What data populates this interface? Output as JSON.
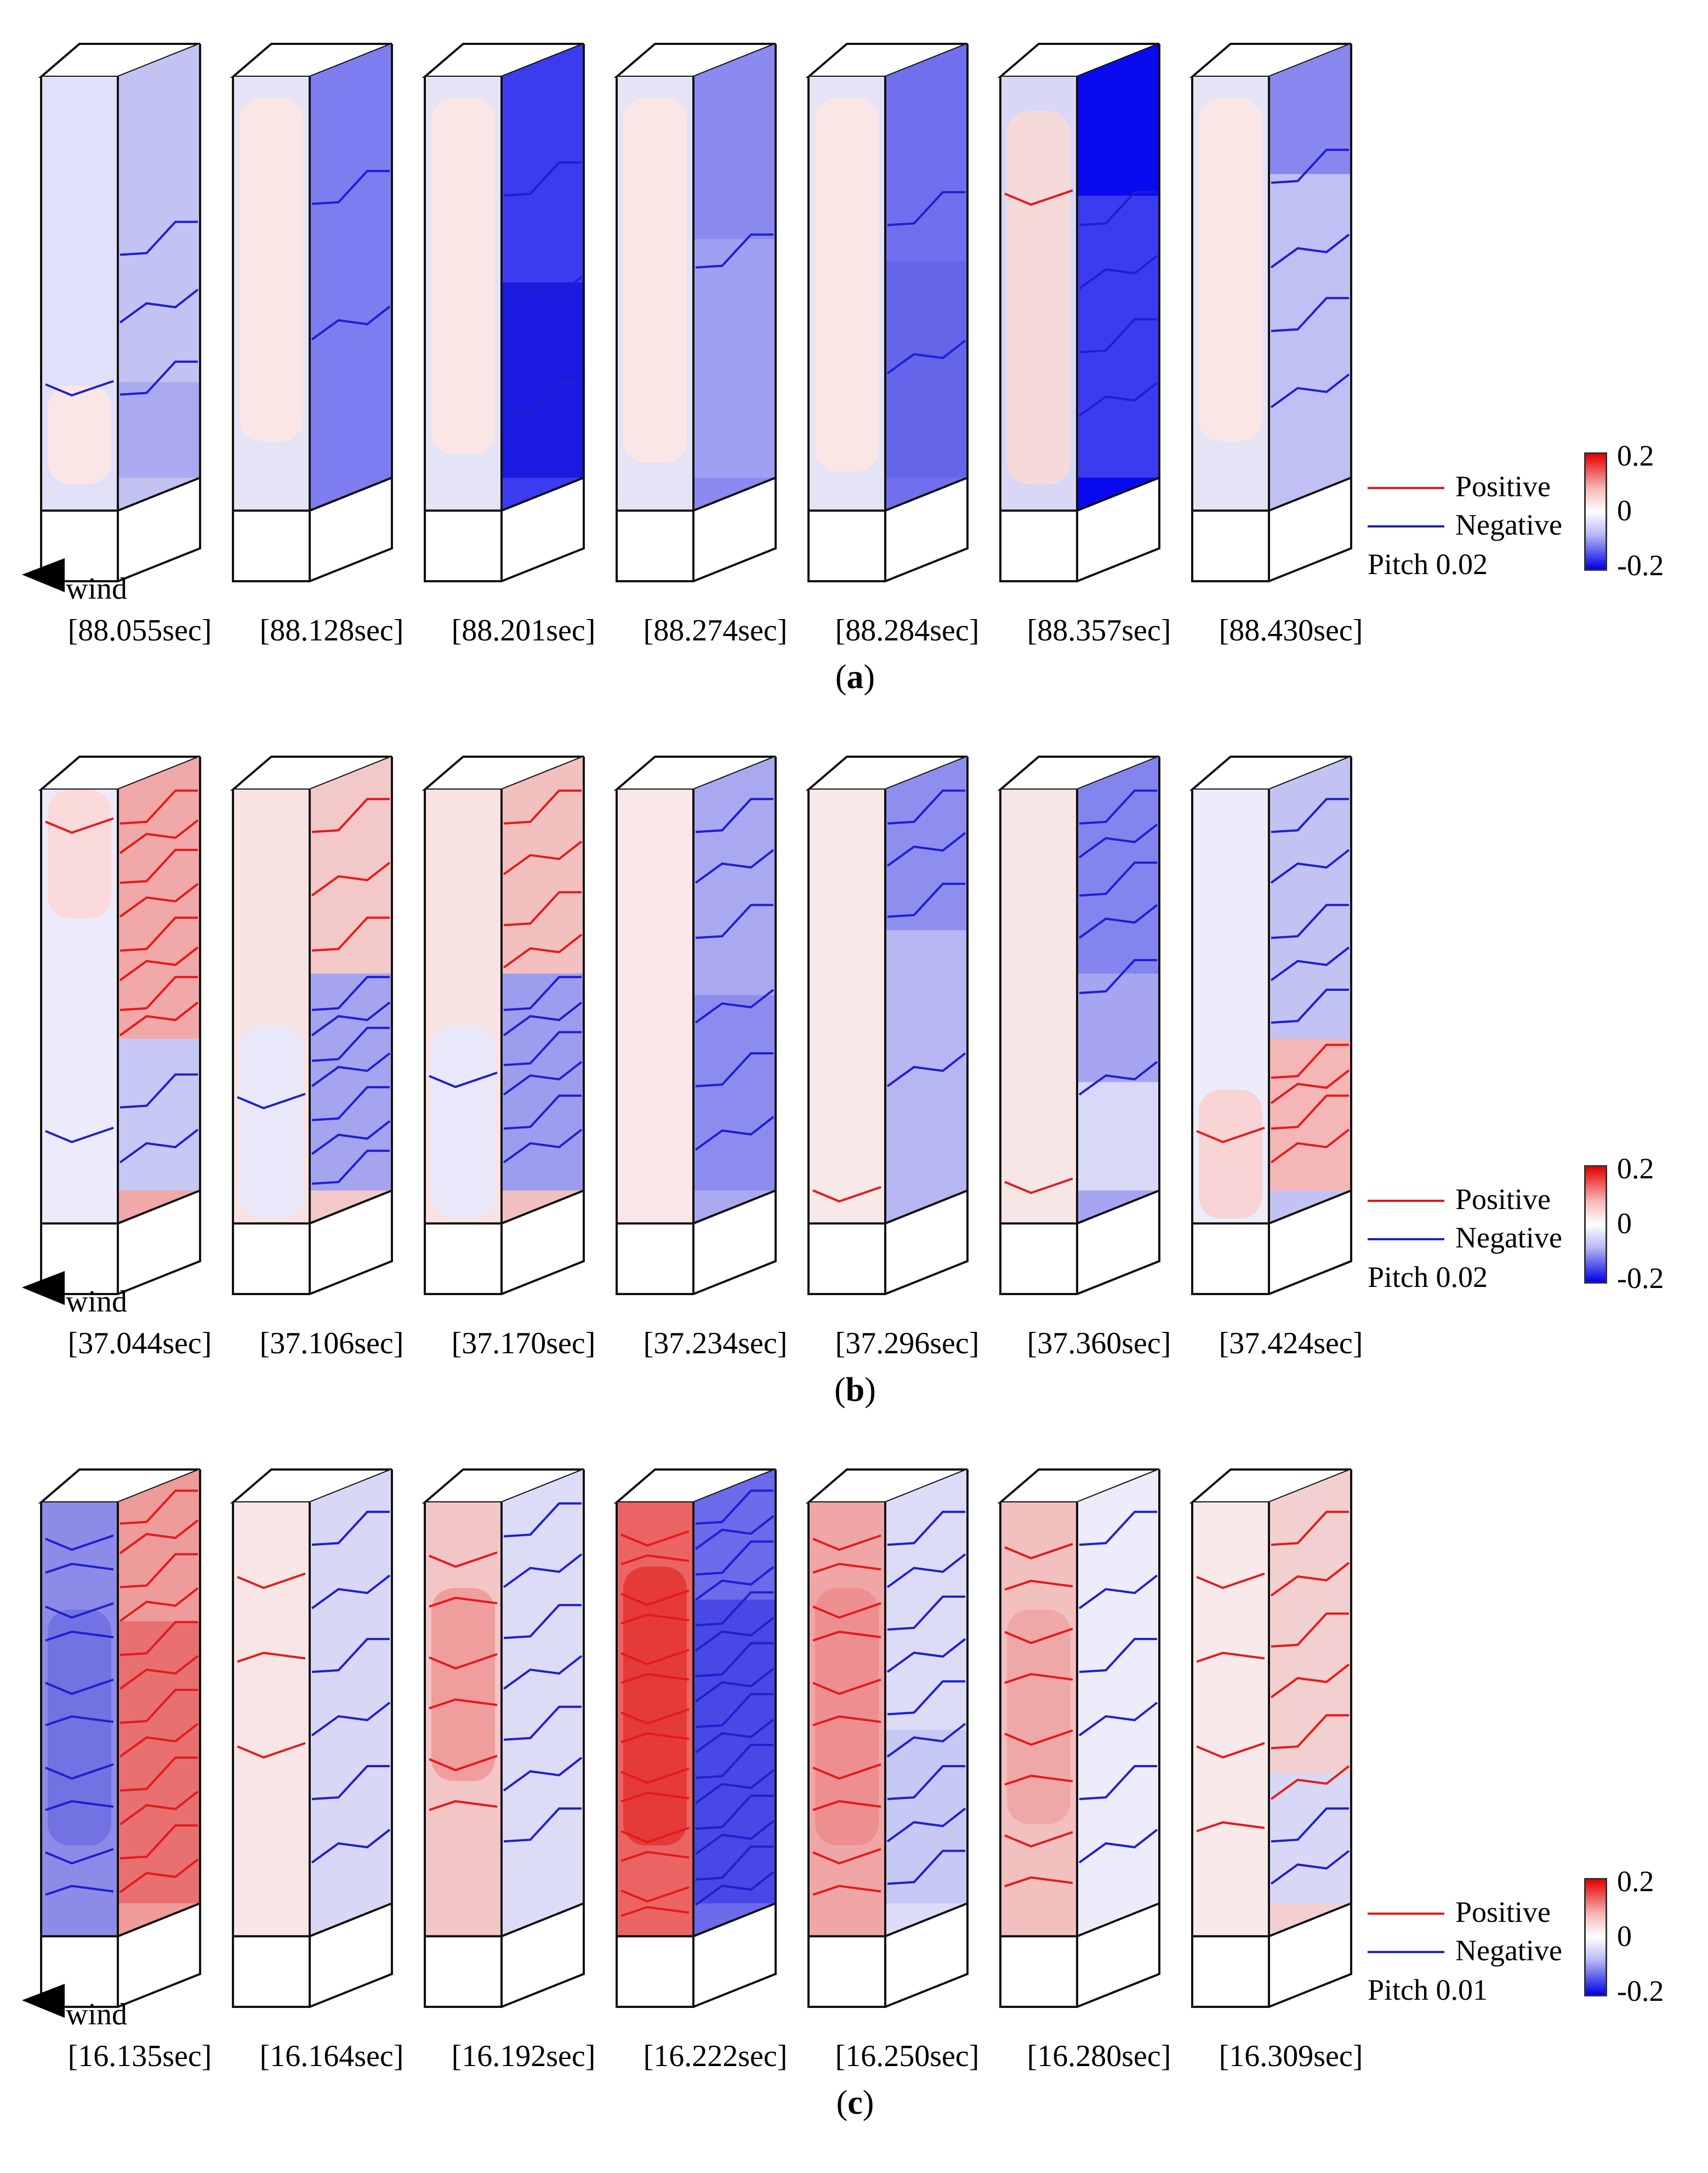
{
  "panels": [
    {
      "id": "a",
      "caption": "a",
      "wind_label": "wind",
      "times": [
        "[88.055sec]",
        "[88.128sec]",
        "[88.201sec]",
        "[88.274sec]",
        "[88.284sec]",
        "[88.357sec]",
        "[88.430sec]"
      ],
      "legend": {
        "positive": "Positive",
        "negative": "Negative",
        "pitch": "Pitch  0.02"
      },
      "colorbar": {
        "max": "0.2",
        "mid": "0",
        "min": "-0.2"
      },
      "buildings": [
        {
          "front": "#e0e0f8",
          "side": "#c3c3f3",
          "bands": [
            {
              "from": 0.78,
              "to": 1.0,
              "color": "#aaaaf2"
            }
          ],
          "frontBands": [
            {
              "from": 0.72,
              "to": 0.95,
              "color": "#fbe6e6"
            }
          ],
          "lines": [
            {
              "face": "side",
              "color": "blue",
              "ys": [
                0.42,
                0.58,
                0.75
              ]
            },
            {
              "face": "front",
              "color": "blue",
              "ys": [
                0.7
              ]
            }
          ]
        },
        {
          "front": "#e4e4f6",
          "side": "#7d7df0",
          "bands": [],
          "frontBands": [
            {
              "from": 0.05,
              "to": 0.85,
              "color": "#fbe6e6"
            }
          ],
          "lines": [
            {
              "face": "side",
              "color": "blue",
              "ys": [
                0.3,
                0.62
              ]
            }
          ]
        },
        {
          "front": "#e4e4f6",
          "side": "#3b3bf0",
          "bands": [
            {
              "from": 0.55,
              "to": 1.0,
              "color": "#1a1ae0"
            }
          ],
          "frontBands": [
            {
              "from": 0.05,
              "to": 0.88,
              "color": "#fbe6e6"
            }
          ],
          "lines": [
            {
              "face": "side",
              "color": "blue",
              "ys": [
                0.28,
                0.55,
                0.8
              ]
            }
          ]
        },
        {
          "front": "#e4e4f6",
          "side": "#8a8af0",
          "bands": [
            {
              "from": 0.45,
              "to": 1.0,
              "color": "#a0a0f3"
            }
          ],
          "frontBands": [
            {
              "from": 0.05,
              "to": 0.9,
              "color": "#fbe6e6"
            }
          ],
          "lines": [
            {
              "face": "side",
              "color": "blue",
              "ys": [
                0.45
              ]
            }
          ]
        },
        {
          "front": "#e4e4f6",
          "side": "#7070ee",
          "bands": [
            {
              "from": 0.5,
              "to": 1.0,
              "color": "#6565ea"
            }
          ],
          "frontBands": [
            {
              "from": 0.05,
              "to": 0.92,
              "color": "#fbe6e6"
            }
          ],
          "lines": [
            {
              "face": "side",
              "color": "blue",
              "ys": [
                0.35,
                0.7
              ]
            }
          ]
        },
        {
          "front": "#d8d8f6",
          "side": "#0a0af0",
          "bands": [
            {
              "from": 0.35,
              "to": 1.0,
              "color": "#3b3bf0"
            }
          ],
          "frontBands": [
            {
              "from": 0.08,
              "to": 0.95,
              "color": "#f6dada"
            }
          ],
          "lines": [
            {
              "face": "side",
              "color": "blue",
              "ys": [
                0.35,
                0.5,
                0.65,
                0.8
              ]
            },
            {
              "face": "front",
              "color": "red",
              "ys": [
                0.25
              ]
            }
          ]
        },
        {
          "front": "#e4e4f6",
          "side": "#c0c0f4",
          "bands": [
            {
              "from": 0.0,
              "to": 0.3,
              "color": "#8787ef"
            }
          ],
          "frontBands": [
            {
              "from": 0.05,
              "to": 0.85,
              "color": "#fbe6e6"
            }
          ],
          "lines": [
            {
              "face": "side",
              "color": "blue",
              "ys": [
                0.25,
                0.45,
                0.6,
                0.78
              ]
            }
          ]
        }
      ]
    },
    {
      "id": "b",
      "caption": "b",
      "wind_label": "wind",
      "times": [
        "[37.044sec]",
        "[37.106sec]",
        "[37.170sec]",
        "[37.234sec]",
        "[37.296sec]",
        "[37.360sec]",
        "[37.424sec]"
      ],
      "legend": {
        "positive": "Positive",
        "negative": "Negative",
        "pitch": "Pitch  0.02"
      },
      "colorbar": {
        "max": "0.2",
        "mid": "0",
        "min": "-0.2"
      },
      "buildings": [
        {
          "front": "#ecebfb",
          "side": "#f1a8a8",
          "bands": [
            {
              "from": 0.65,
              "to": 1.0,
              "color": "#c8c8f4"
            }
          ],
          "frontBands": [
            {
              "from": 0.0,
              "to": 0.3,
              "color": "#fadada"
            }
          ],
          "lines": [
            {
              "face": "side",
              "color": "red",
              "ys": [
                0.08,
                0.15,
                0.22,
                0.3,
                0.38,
                0.45,
                0.52,
                0.58
              ]
            },
            {
              "face": "side",
              "color": "blue",
              "ys": [
                0.75,
                0.88
              ]
            },
            {
              "face": "front",
              "color": "red",
              "ys": [
                0.05
              ]
            },
            {
              "face": "front",
              "color": "blue",
              "ys": [
                0.78
              ]
            }
          ]
        },
        {
          "front": "#f8e2e2",
          "side": "#f3c8c8",
          "bands": [
            {
              "from": 0.5,
              "to": 1.0,
              "color": "#a4a4ef"
            }
          ],
          "frontBands": [
            {
              "from": 0.55,
              "to": 1.0,
              "color": "#e8e8fa"
            }
          ],
          "lines": [
            {
              "face": "side",
              "color": "red",
              "ys": [
                0.1,
                0.25,
                0.38
              ]
            },
            {
              "face": "side",
              "color": "blue",
              "ys": [
                0.52,
                0.58,
                0.64,
                0.7,
                0.78,
                0.86,
                0.93
              ]
            },
            {
              "face": "front",
              "color": "blue",
              "ys": [
                0.7
              ]
            }
          ]
        },
        {
          "front": "#f8e2e2",
          "side": "#f3c0c0",
          "bands": [
            {
              "from": 0.5,
              "to": 1.0,
              "color": "#9d9def"
            }
          ],
          "frontBands": [
            {
              "from": 0.55,
              "to": 1.0,
              "color": "#e8e8fa"
            }
          ],
          "lines": [
            {
              "face": "side",
              "color": "red",
              "ys": [
                0.08,
                0.2,
                0.32,
                0.42
              ]
            },
            {
              "face": "side",
              "color": "blue",
              "ys": [
                0.52,
                0.58,
                0.65,
                0.72,
                0.8,
                0.88
              ]
            },
            {
              "face": "front",
              "color": "blue",
              "ys": [
                0.65
              ]
            }
          ]
        },
        {
          "front": "#f9e6e6",
          "side": "#a9a9f1",
          "bands": [
            {
              "from": 0.55,
              "to": 1.0,
              "color": "#8c8cee"
            }
          ],
          "frontBands": [],
          "lines": [
            {
              "face": "side",
              "color": "blue",
              "ys": [
                0.1,
                0.22,
                0.35,
                0.55,
                0.7,
                0.85
              ]
            }
          ]
        },
        {
          "front": "#f8e8e8",
          "side": "#b6b6f2",
          "bands": [
            {
              "from": 0.0,
              "to": 0.4,
              "color": "#8e8eef"
            }
          ],
          "frontBands": [],
          "lines": [
            {
              "face": "side",
              "color": "blue",
              "ys": [
                0.08,
                0.18,
                0.3,
                0.7
              ]
            },
            {
              "face": "front",
              "color": "red",
              "ys": [
                0.92
              ]
            }
          ]
        },
        {
          "front": "#f7e6e6",
          "side": "#a5a5f1",
          "bands": [
            {
              "from": 0.0,
              "to": 0.5,
              "color": "#8484ee"
            },
            {
              "from": 0.75,
              "to": 1.0,
              "color": "#d8d8f8"
            }
          ],
          "frontBands": [],
          "lines": [
            {
              "face": "side",
              "color": "blue",
              "ys": [
                0.08,
                0.16,
                0.25,
                0.35,
                0.48,
                0.72
              ]
            },
            {
              "face": "front",
              "color": "red",
              "ys": [
                0.9
              ]
            }
          ]
        },
        {
          "front": "#ececfa",
          "side": "#c3c3f3",
          "bands": [
            {
              "from": 0.65,
              "to": 1.0,
              "color": "#f5b6b6"
            }
          ],
          "frontBands": [
            {
              "from": 0.7,
              "to": 1.0,
              "color": "#f8d4d4"
            }
          ],
          "lines": [
            {
              "face": "side",
              "color": "blue",
              "ys": [
                0.1,
                0.22,
                0.35,
                0.45,
                0.55
              ]
            },
            {
              "face": "side",
              "color": "red",
              "ys": [
                0.68,
                0.74,
                0.8,
                0.88
              ]
            },
            {
              "face": "front",
              "color": "red",
              "ys": [
                0.78
              ]
            }
          ]
        }
      ]
    },
    {
      "id": "c",
      "caption": "c",
      "wind_label": "wind",
      "times": [
        "[16.135sec]",
        "[16.164sec]",
        "[16.192sec]",
        "[16.222sec]",
        "[16.250sec]",
        "[16.280sec]",
        "[16.309sec]"
      ],
      "legend": {
        "positive": "Positive",
        "negative": "Negative",
        "pitch": "Pitch  0.01"
      },
      "colorbar": {
        "max": "0.2",
        "mid": "0",
        "min": "-0.2"
      },
      "buildings": [
        {
          "front": "#8c8ce8",
          "side": "#ee9b9b",
          "bands": [
            {
              "from": 0.35,
              "to": 1.0,
              "color": "#e87070"
            }
          ],
          "frontBands": [
            {
              "from": 0.25,
              "to": 0.8,
              "color": "#7272e2"
            }
          ],
          "lines": [
            {
              "face": "side",
              "color": "red",
              "ys": [
                0.05,
                0.12,
                0.2,
                0.28,
                0.36,
                0.44,
                0.52,
                0.6,
                0.68,
                0.76,
                0.84,
                0.92
              ]
            },
            {
              "face": "front",
              "color": "blue",
              "ys": [
                0.06,
                0.14,
                0.22,
                0.3,
                0.4,
                0.5,
                0.6,
                0.7,
                0.8,
                0.9
              ]
            }
          ]
        },
        {
          "front": "#f8e6e6",
          "side": "#d8d8f6",
          "bands": [],
          "frontBands": [],
          "lines": [
            {
              "face": "side",
              "color": "blue",
              "ys": [
                0.1,
                0.25,
                0.4,
                0.55,
                0.7,
                0.85
              ]
            },
            {
              "face": "front",
              "color": "red",
              "ys": [
                0.15,
                0.35,
                0.55
              ]
            }
          ]
        },
        {
          "front": "#f3c6c6",
          "side": "#dcdcf6",
          "bands": [],
          "frontBands": [
            {
              "from": 0.2,
              "to": 0.65,
              "color": "#ef9d9d"
            }
          ],
          "lines": [
            {
              "face": "side",
              "color": "blue",
              "ys": [
                0.08,
                0.2,
                0.32,
                0.44,
                0.56,
                0.68,
                0.8
              ]
            },
            {
              "face": "front",
              "color": "red",
              "ys": [
                0.1,
                0.22,
                0.34,
                0.46,
                0.58,
                0.7
              ]
            }
          ]
        },
        {
          "front": "#ea6464",
          "side": "#6b6beb",
          "bands": [
            {
              "from": 0.3,
              "to": 1.0,
              "color": "#4848e6"
            }
          ],
          "frontBands": [
            {
              "from": 0.15,
              "to": 0.8,
              "color": "#e43a3a"
            }
          ],
          "lines": [
            {
              "face": "side",
              "color": "blue",
              "ys": [
                0.05,
                0.11,
                0.17,
                0.23,
                0.29,
                0.35,
                0.41,
                0.47,
                0.53,
                0.59,
                0.65,
                0.71,
                0.77,
                0.83,
                0.89,
                0.95
              ]
            },
            {
              "face": "front",
              "color": "red",
              "ys": [
                0.05,
                0.12,
                0.19,
                0.26,
                0.33,
                0.4,
                0.47,
                0.54,
                0.61,
                0.68,
                0.75,
                0.82,
                0.89,
                0.95
              ]
            }
          ]
        },
        {
          "front": "#f0a6a6",
          "side": "#dcdcf6",
          "bands": [
            {
              "from": 0.6,
              "to": 1.0,
              "color": "#c8c8f4"
            }
          ],
          "frontBands": [
            {
              "from": 0.2,
              "to": 0.8,
              "color": "#ed8f8f"
            }
          ],
          "lines": [
            {
              "face": "side",
              "color": "blue",
              "ys": [
                0.1,
                0.2,
                0.3,
                0.4,
                0.5,
                0.6,
                0.7,
                0.8,
                0.9
              ]
            },
            {
              "face": "front",
              "color": "red",
              "ys": [
                0.06,
                0.14,
                0.22,
                0.3,
                0.4,
                0.5,
                0.6,
                0.7,
                0.8,
                0.9
              ]
            }
          ]
        },
        {
          "front": "#f3c0c0",
          "side": "#ececfa",
          "bands": [],
          "frontBands": [
            {
              "from": 0.25,
              "to": 0.75,
              "color": "#efa8a8"
            }
          ],
          "lines": [
            {
              "face": "side",
              "color": "blue",
              "ys": [
                0.1,
                0.25,
                0.4,
                0.55,
                0.7,
                0.85
              ]
            },
            {
              "face": "front",
              "color": "red",
              "ys": [
                0.08,
                0.18,
                0.28,
                0.4,
                0.52,
                0.64,
                0.76,
                0.88
              ]
            }
          ]
        },
        {
          "front": "#f8eaea",
          "side": "#f3d0d0",
          "bands": [
            {
              "from": 0.7,
              "to": 1.0,
              "color": "#d8d8f6"
            }
          ],
          "frontBands": [],
          "lines": [
            {
              "face": "side",
              "color": "red",
              "ys": [
                0.1,
                0.22,
                0.34,
                0.46,
                0.58,
                0.7
              ]
            },
            {
              "face": "side",
              "color": "blue",
              "ys": [
                0.8,
                0.9
              ]
            },
            {
              "face": "front",
              "color": "red",
              "ys": [
                0.15,
                0.35,
                0.55,
                0.75
              ]
            }
          ]
        }
      ]
    }
  ]
}
